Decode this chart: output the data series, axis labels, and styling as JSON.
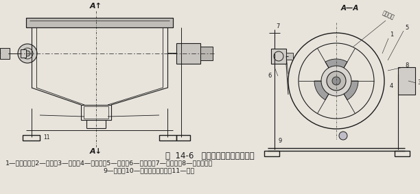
{
  "title_line": "图  14-6   半逆流型永磁筒式磁选机",
  "caption_line1": "1—永磁圆筒；2—磁系；3—槽体；4—磁弓板；5—支架；6—喷水管；7—给矿沿；8—卸矿水管；",
  "caption_line2": "9—底板；10—磁偏角调整装置；11—机架",
  "bg_color": "#e8e4dc",
  "draw_color": "#1a1a1a",
  "fig_width": 6.12,
  "fig_height": 2.83,
  "dpi": 100
}
